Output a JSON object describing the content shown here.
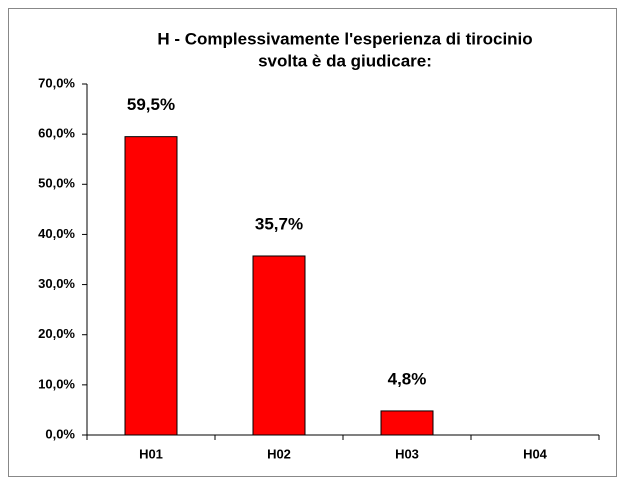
{
  "chart_data": {
    "type": "bar",
    "title": [
      "H - Complessivamente l'esperienza di tirocinio",
      "svolta è da giudicare:"
    ],
    "categories": [
      "H01",
      "H02",
      "H03",
      "H04"
    ],
    "values": [
      59.5,
      35.7,
      4.8,
      0
    ],
    "value_labels": [
      "59,5%",
      "35,7%",
      "4,8%",
      null
    ],
    "color": "#ff0000",
    "ylim": [
      0,
      70
    ],
    "yticks": [
      {
        "value": 0,
        "label": "0,0%"
      },
      {
        "value": 10,
        "label": "10,0%"
      },
      {
        "value": 20,
        "label": "20,0%"
      },
      {
        "value": 30,
        "label": "30,0%"
      },
      {
        "value": 40,
        "label": "40,0%"
      },
      {
        "value": 50,
        "label": "50,0%"
      },
      {
        "value": 60,
        "label": "60,0%"
      },
      {
        "value": 70,
        "label": "70,0%"
      }
    ],
    "grid": false
  }
}
